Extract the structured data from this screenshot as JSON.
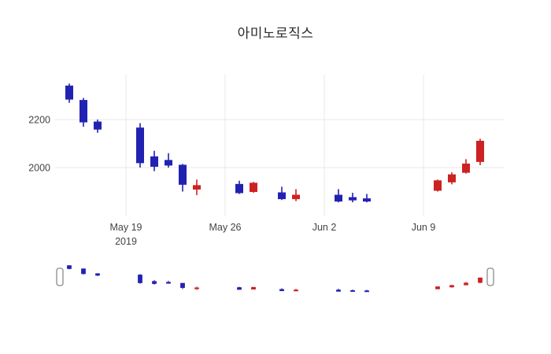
{
  "title": "아미노로직스",
  "chart_data": {
    "type": "candlestick",
    "title": "아미노로직스",
    "increasing_color": "#cc2222",
    "decreasing_color": "#2222b2",
    "grid": true,
    "legend_position": "none",
    "ylim": [
      1800,
      2390
    ],
    "yticks": [
      {
        "value": 2200,
        "label": "2200"
      },
      {
        "value": 2000,
        "label": "2000"
      }
    ],
    "xticks": [
      {
        "date": "2019-05-19",
        "label": "May 19",
        "sublabel": "2019"
      },
      {
        "date": "2019-05-26",
        "label": "May 26",
        "sublabel": ""
      },
      {
        "date": "2019-06-02",
        "label": "Jun 2",
        "sublabel": ""
      },
      {
        "date": "2019-06-09",
        "label": "Jun 9",
        "sublabel": ""
      }
    ],
    "rangeslider": true,
    "candles": [
      {
        "date": "2019-05-15",
        "open": 2340,
        "high": 2350,
        "low": 2270,
        "close": 2285
      },
      {
        "date": "2019-05-16",
        "open": 2280,
        "high": 2290,
        "low": 2170,
        "close": 2190
      },
      {
        "date": "2019-05-17",
        "open": 2190,
        "high": 2200,
        "low": 2145,
        "close": 2160
      },
      {
        "date": "2019-05-20",
        "open": 2165,
        "high": 2185,
        "low": 2000,
        "close": 2020
      },
      {
        "date": "2019-05-21",
        "open": 2045,
        "high": 2070,
        "low": 1985,
        "close": 2005
      },
      {
        "date": "2019-05-22",
        "open": 2030,
        "high": 2060,
        "low": 2000,
        "close": 2010
      },
      {
        "date": "2019-05-23",
        "open": 2010,
        "high": 2015,
        "low": 1900,
        "close": 1930
      },
      {
        "date": "2019-05-24",
        "open": 1910,
        "high": 1950,
        "low": 1885,
        "close": 1925
      },
      {
        "date": "2019-05-27",
        "open": 1930,
        "high": 1945,
        "low": 1890,
        "close": 1895
      },
      {
        "date": "2019-05-28",
        "open": 1900,
        "high": 1940,
        "low": 1895,
        "close": 1935
      },
      {
        "date": "2019-05-30",
        "open": 1895,
        "high": 1920,
        "low": 1865,
        "close": 1870
      },
      {
        "date": "2019-05-31",
        "open": 1870,
        "high": 1910,
        "low": 1860,
        "close": 1885
      },
      {
        "date": "2019-06-03",
        "open": 1885,
        "high": 1910,
        "low": 1855,
        "close": 1860
      },
      {
        "date": "2019-06-04",
        "open": 1875,
        "high": 1895,
        "low": 1855,
        "close": 1865
      },
      {
        "date": "2019-06-05",
        "open": 1870,
        "high": 1890,
        "low": 1855,
        "close": 1860
      },
      {
        "date": "2019-06-10",
        "open": 1905,
        "high": 1950,
        "low": 1900,
        "close": 1945
      },
      {
        "date": "2019-06-11",
        "open": 1940,
        "high": 1980,
        "low": 1930,
        "close": 1970
      },
      {
        "date": "2019-06-12",
        "open": 1980,
        "high": 2035,
        "low": 1975,
        "close": 2015
      },
      {
        "date": "2019-06-13",
        "open": 2025,
        "high": 2120,
        "low": 2010,
        "close": 2110
      }
    ]
  }
}
